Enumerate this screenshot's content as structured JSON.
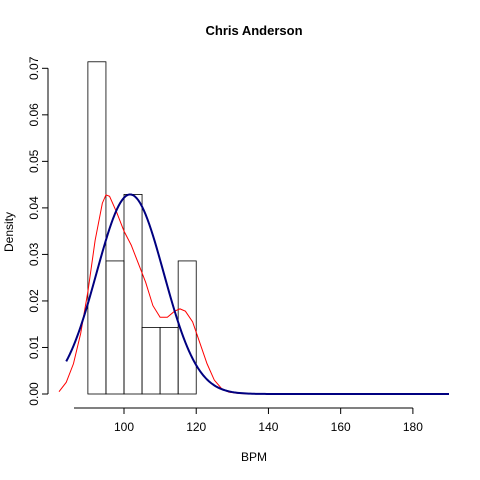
{
  "chart_data": {
    "type": "bar",
    "title": "Chris Anderson",
    "xlabel": "BPM",
    "ylabel": "Density",
    "xlim": [
      82,
      190
    ],
    "ylim": [
      0,
      0.072
    ],
    "x_ticks": [
      100,
      120,
      140,
      160,
      180
    ],
    "y_ticks": [
      0.0,
      0.01,
      0.02,
      0.03,
      0.04,
      0.05,
      0.06,
      0.07
    ],
    "y_tick_labels": [
      "0.00",
      "0.01",
      "0.02",
      "0.03",
      "0.04",
      "0.05",
      "0.06",
      "0.07"
    ],
    "histogram": {
      "bins": [
        {
          "from": 90,
          "to": 95,
          "density": 0.0714
        },
        {
          "from": 95,
          "to": 100,
          "density": 0.0286
        },
        {
          "from": 100,
          "to": 105,
          "density": 0.0429
        },
        {
          "from": 105,
          "to": 110,
          "density": 0.0143
        },
        {
          "from": 110,
          "to": 115,
          "density": 0.0143
        },
        {
          "from": 115,
          "to": 120,
          "density": 0.0286
        }
      ]
    },
    "normal_curve": {
      "color": "#000080",
      "mean": 101.7,
      "sd": 9.3,
      "x_from": 84,
      "x_to": 190
    },
    "kde_curve": {
      "color": "#ff0000",
      "points": [
        [
          82,
          0.0005
        ],
        [
          84,
          0.0025
        ],
        [
          86,
          0.0065
        ],
        [
          88,
          0.013
        ],
        [
          90,
          0.022
        ],
        [
          92,
          0.033
        ],
        [
          94,
          0.041
        ],
        [
          95,
          0.0428
        ],
        [
          96,
          0.0425
        ],
        [
          98,
          0.039
        ],
        [
          100,
          0.035
        ],
        [
          102,
          0.032
        ],
        [
          104,
          0.028
        ],
        [
          106,
          0.024
        ],
        [
          108,
          0.019
        ],
        [
          110,
          0.0165
        ],
        [
          112,
          0.0165
        ],
        [
          114,
          0.0178
        ],
        [
          115.5,
          0.0183
        ],
        [
          117,
          0.0178
        ],
        [
          119,
          0.0155
        ],
        [
          121,
          0.011
        ],
        [
          123,
          0.0065
        ],
        [
          125,
          0.003
        ],
        [
          127,
          0.0012
        ],
        [
          129,
          0.0004
        ],
        [
          132,
          0.0001
        ],
        [
          136,
          0.0
        ]
      ]
    }
  }
}
